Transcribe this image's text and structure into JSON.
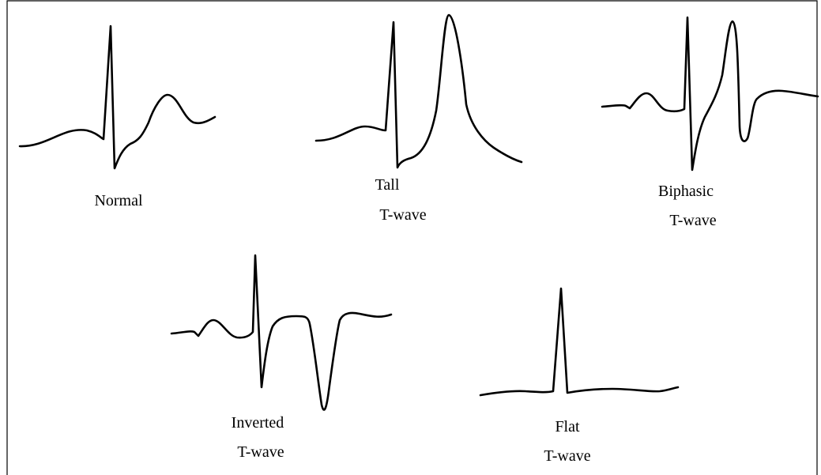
{
  "waveforms": [
    {
      "lines": [
        "Normal"
      ]
    },
    {
      "lines": [
        "Tall",
        "T-wave"
      ]
    },
    {
      "lines": [
        "Biphasic",
        "T-wave"
      ]
    },
    {
      "lines": [
        "Inverted",
        "T-wave"
      ]
    },
    {
      "lines": [
        "Flat",
        "T-wave"
      ]
    }
  ]
}
